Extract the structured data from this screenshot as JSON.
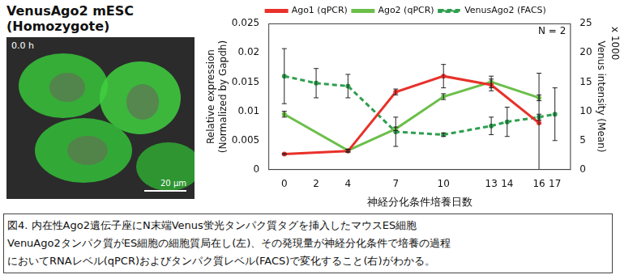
{
  "panel": {
    "title": "VenusAgo2 mESC\n(Homozygote)",
    "time_label": "0.0 h",
    "scale_bar": "20 μm"
  },
  "chart_data": {
    "type": "line",
    "xlabel": "神経分化条件培養日数",
    "ylabel": "Relative expression\n(Normalized by Gapdh)",
    "y2label": "Venus intensity (Mean)",
    "y2label_note": "x 1000",
    "annotation": "N = 2",
    "xlim": [
      -1,
      18
    ],
    "xticks": [
      0,
      2,
      4,
      7,
      10,
      13,
      14,
      16,
      17
    ],
    "ylim": [
      0,
      0.025
    ],
    "yticks": [
      0,
      0.005,
      0.01,
      0.015,
      0.02,
      0.025
    ],
    "y2lim": [
      0,
      25
    ],
    "y2ticks": [
      0,
      5,
      10,
      15,
      20,
      25
    ],
    "grid": false,
    "legend": "top",
    "series": [
      {
        "name": "Ago1 (qPCR)",
        "color": "#e8312a",
        "line_style": "solid",
        "x": [
          0,
          4,
          7,
          10,
          13,
          16
        ],
        "values": [
          0.0027,
          0.0032,
          0.0133,
          0.016,
          0.0145,
          0.008
        ],
        "errors": [
          0.0001,
          0.0002,
          0.0005,
          0.002,
          0.001,
          0.0085
        ]
      },
      {
        "name": "Ago2 (qPCR)",
        "color": "#6cbf4a",
        "line_style": "solid",
        "x": [
          0,
          4,
          7,
          10,
          13,
          16
        ],
        "values": [
          0.0095,
          0.0033,
          0.007,
          0.0125,
          0.015,
          0.0123
        ],
        "errors": [
          0.0005,
          0.0002,
          0.0003,
          0.0005,
          0.001,
          0.0005
        ]
      },
      {
        "name": "VenusAgo2 (FACS)",
        "color": "#2e9e4e",
        "line_style": "dashed",
        "axis": "y2",
        "x": [
          0,
          2,
          4,
          7,
          10,
          13,
          14,
          16,
          17
        ],
        "values": [
          16,
          14.8,
          14.3,
          6.5,
          6,
          7.5,
          8.2,
          9,
          9.5
        ],
        "errors": [
          4.7,
          2.5,
          2,
          2.5,
          0.3,
          1.5,
          2.5,
          0.5,
          4.5
        ]
      }
    ]
  },
  "caption": [
    "図4. 内在性Ago2遺伝子座にN末端Venus蛍光タンパク質タグを挿入したマウスES細胞",
    "VenuAgo2タンパク質がES細胞の細胞質局在し(左)、その発現量が神経分化条件で培養の過程",
    "においてRNAレベル(qPCR)およびタンパク質レベル(FACS)で変化すること(右)がわかる。"
  ]
}
